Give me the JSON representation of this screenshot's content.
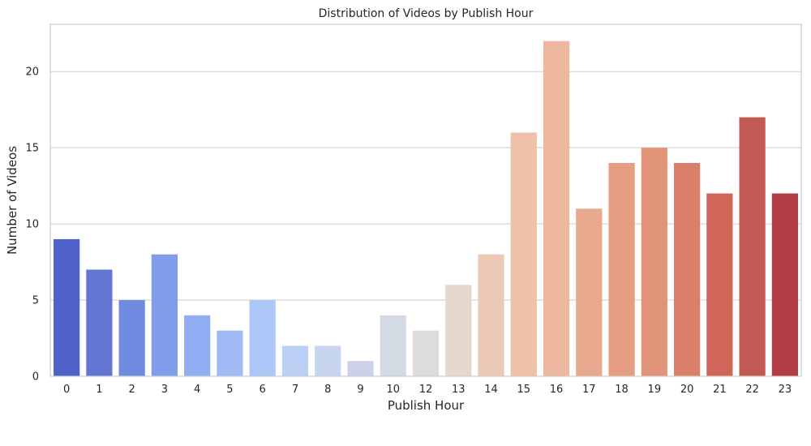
{
  "chart_data": {
    "type": "bar",
    "title": "Distribution of Videos by Publish Hour",
    "xlabel": "Publish Hour",
    "ylabel": "Number of Videos",
    "categories": [
      "0",
      "1",
      "2",
      "3",
      "4",
      "5",
      "6",
      "7",
      "8",
      "9",
      "10",
      "12",
      "13",
      "14",
      "15",
      "16",
      "17",
      "18",
      "19",
      "20",
      "21",
      "22",
      "23"
    ],
    "values": [
      9,
      7,
      5,
      8,
      4,
      3,
      5,
      2,
      2,
      1,
      4,
      3,
      6,
      8,
      16,
      22,
      11,
      14,
      15,
      14,
      12,
      17,
      12
    ],
    "ylim": [
      0,
      23.1
    ],
    "yticks": [
      0,
      5,
      10,
      15,
      20
    ],
    "grid": true,
    "palette": "coolwarm",
    "colors": [
      "#4e62c9",
      "#6377d2",
      "#6f8be0",
      "#7f9de8",
      "#90adf1",
      "#a0baf6",
      "#adc6f8",
      "#bccff5",
      "#c8d5ee",
      "#cbd2e8",
      "#d4dae4",
      "#dddcdb",
      "#e4d8cf",
      "#ecc9b5",
      "#efc1a8",
      "#eeb89f",
      "#e8a88d",
      "#e59e82",
      "#e29479",
      "#d97f6a",
      "#cf6659",
      "#c35953",
      "#b33d44"
    ]
  }
}
